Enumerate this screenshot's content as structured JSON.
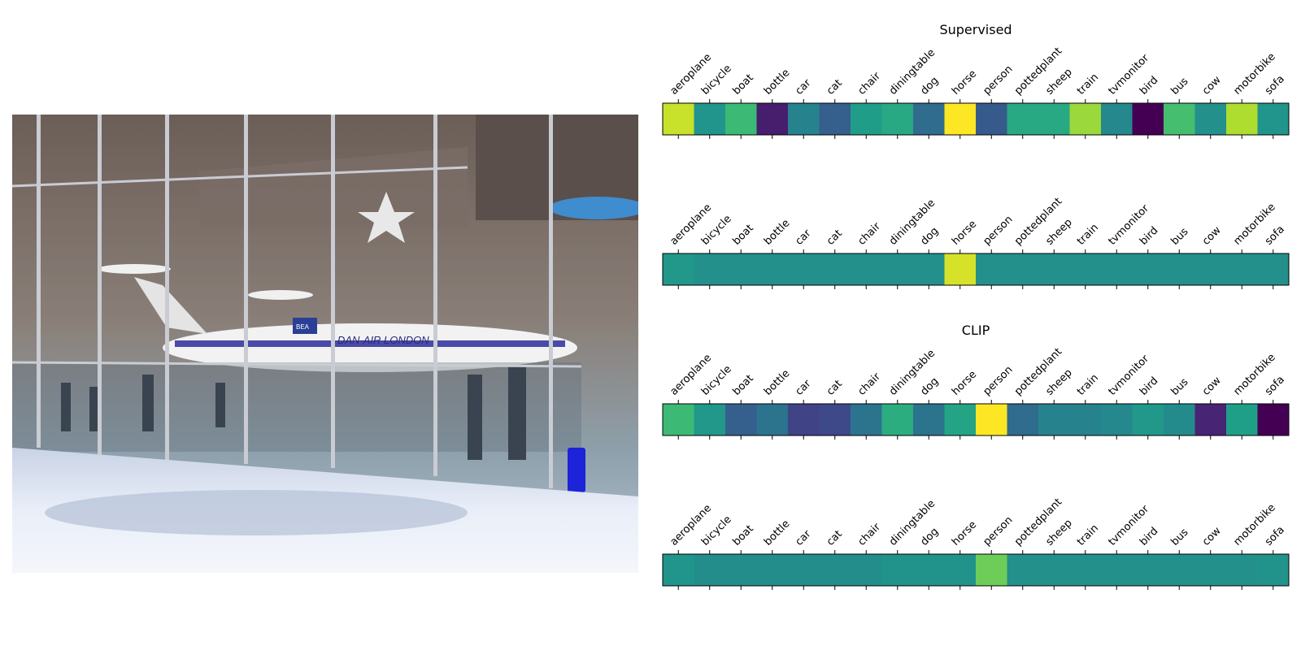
{
  "photo": {
    "description_icon": "photo-icon",
    "painted_text": [
      "DAN-AIR LONDON",
      "BEA"
    ]
  },
  "colormap": "viridis",
  "chart_data": [
    {
      "type": "heatmap",
      "title": "Supervised",
      "categories": [
        "aeroplane",
        "bicycle",
        "boat",
        "bottle",
        "car",
        "cat",
        "chair",
        "diningtable",
        "dog",
        "horse",
        "person",
        "pottedplant",
        "sheep",
        "train",
        "tvmonitor",
        "bird",
        "bus",
        "cow",
        "motorbike",
        "sofa"
      ],
      "values": [
        0.92,
        0.52,
        0.68,
        0.08,
        0.45,
        0.3,
        0.55,
        0.6,
        0.35,
        1.0,
        0.28,
        0.6,
        0.6,
        0.85,
        0.47,
        0.0,
        0.7,
        0.5,
        0.88,
        0.52
      ],
      "vmin": 0,
      "vmax": 1
    },
    {
      "type": "heatmap",
      "title": "",
      "categories": [
        "aeroplane",
        "bicycle",
        "boat",
        "bottle",
        "car",
        "cat",
        "chair",
        "diningtable",
        "dog",
        "horse",
        "person",
        "pottedplant",
        "sheep",
        "train",
        "tvmonitor",
        "bird",
        "bus",
        "cow",
        "motorbike",
        "sofa"
      ],
      "values": [
        0.53,
        0.5,
        0.5,
        0.5,
        0.5,
        0.5,
        0.5,
        0.5,
        0.5,
        0.94,
        0.5,
        0.5,
        0.5,
        0.5,
        0.5,
        0.5,
        0.5,
        0.5,
        0.5,
        0.5
      ],
      "vmin": 0,
      "vmax": 1
    },
    {
      "type": "heatmap",
      "title": "CLIP",
      "categories": [
        "aeroplane",
        "bicycle",
        "boat",
        "bottle",
        "car",
        "cat",
        "chair",
        "diningtable",
        "dog",
        "horse",
        "person",
        "pottedplant",
        "sheep",
        "train",
        "tvmonitor",
        "bird",
        "bus",
        "cow",
        "motorbike",
        "sofa"
      ],
      "values": [
        0.68,
        0.53,
        0.3,
        0.38,
        0.2,
        0.22,
        0.38,
        0.62,
        0.38,
        0.58,
        1.0,
        0.35,
        0.45,
        0.45,
        0.47,
        0.53,
        0.48,
        0.1,
        0.56,
        0.0
      ],
      "vmin": 0,
      "vmax": 1
    },
    {
      "type": "heatmap",
      "title": "",
      "categories": [
        "aeroplane",
        "bicycle",
        "boat",
        "bottle",
        "car",
        "cat",
        "chair",
        "diningtable",
        "dog",
        "horse",
        "person",
        "pottedplant",
        "sheep",
        "train",
        "tvmonitor",
        "bird",
        "bus",
        "cow",
        "motorbike",
        "sofa"
      ],
      "values": [
        0.52,
        0.49,
        0.49,
        0.49,
        0.49,
        0.49,
        0.49,
        0.51,
        0.51,
        0.51,
        0.78,
        0.5,
        0.5,
        0.5,
        0.5,
        0.5,
        0.5,
        0.5,
        0.5,
        0.51
      ],
      "vmin": 0,
      "vmax": 1
    }
  ]
}
